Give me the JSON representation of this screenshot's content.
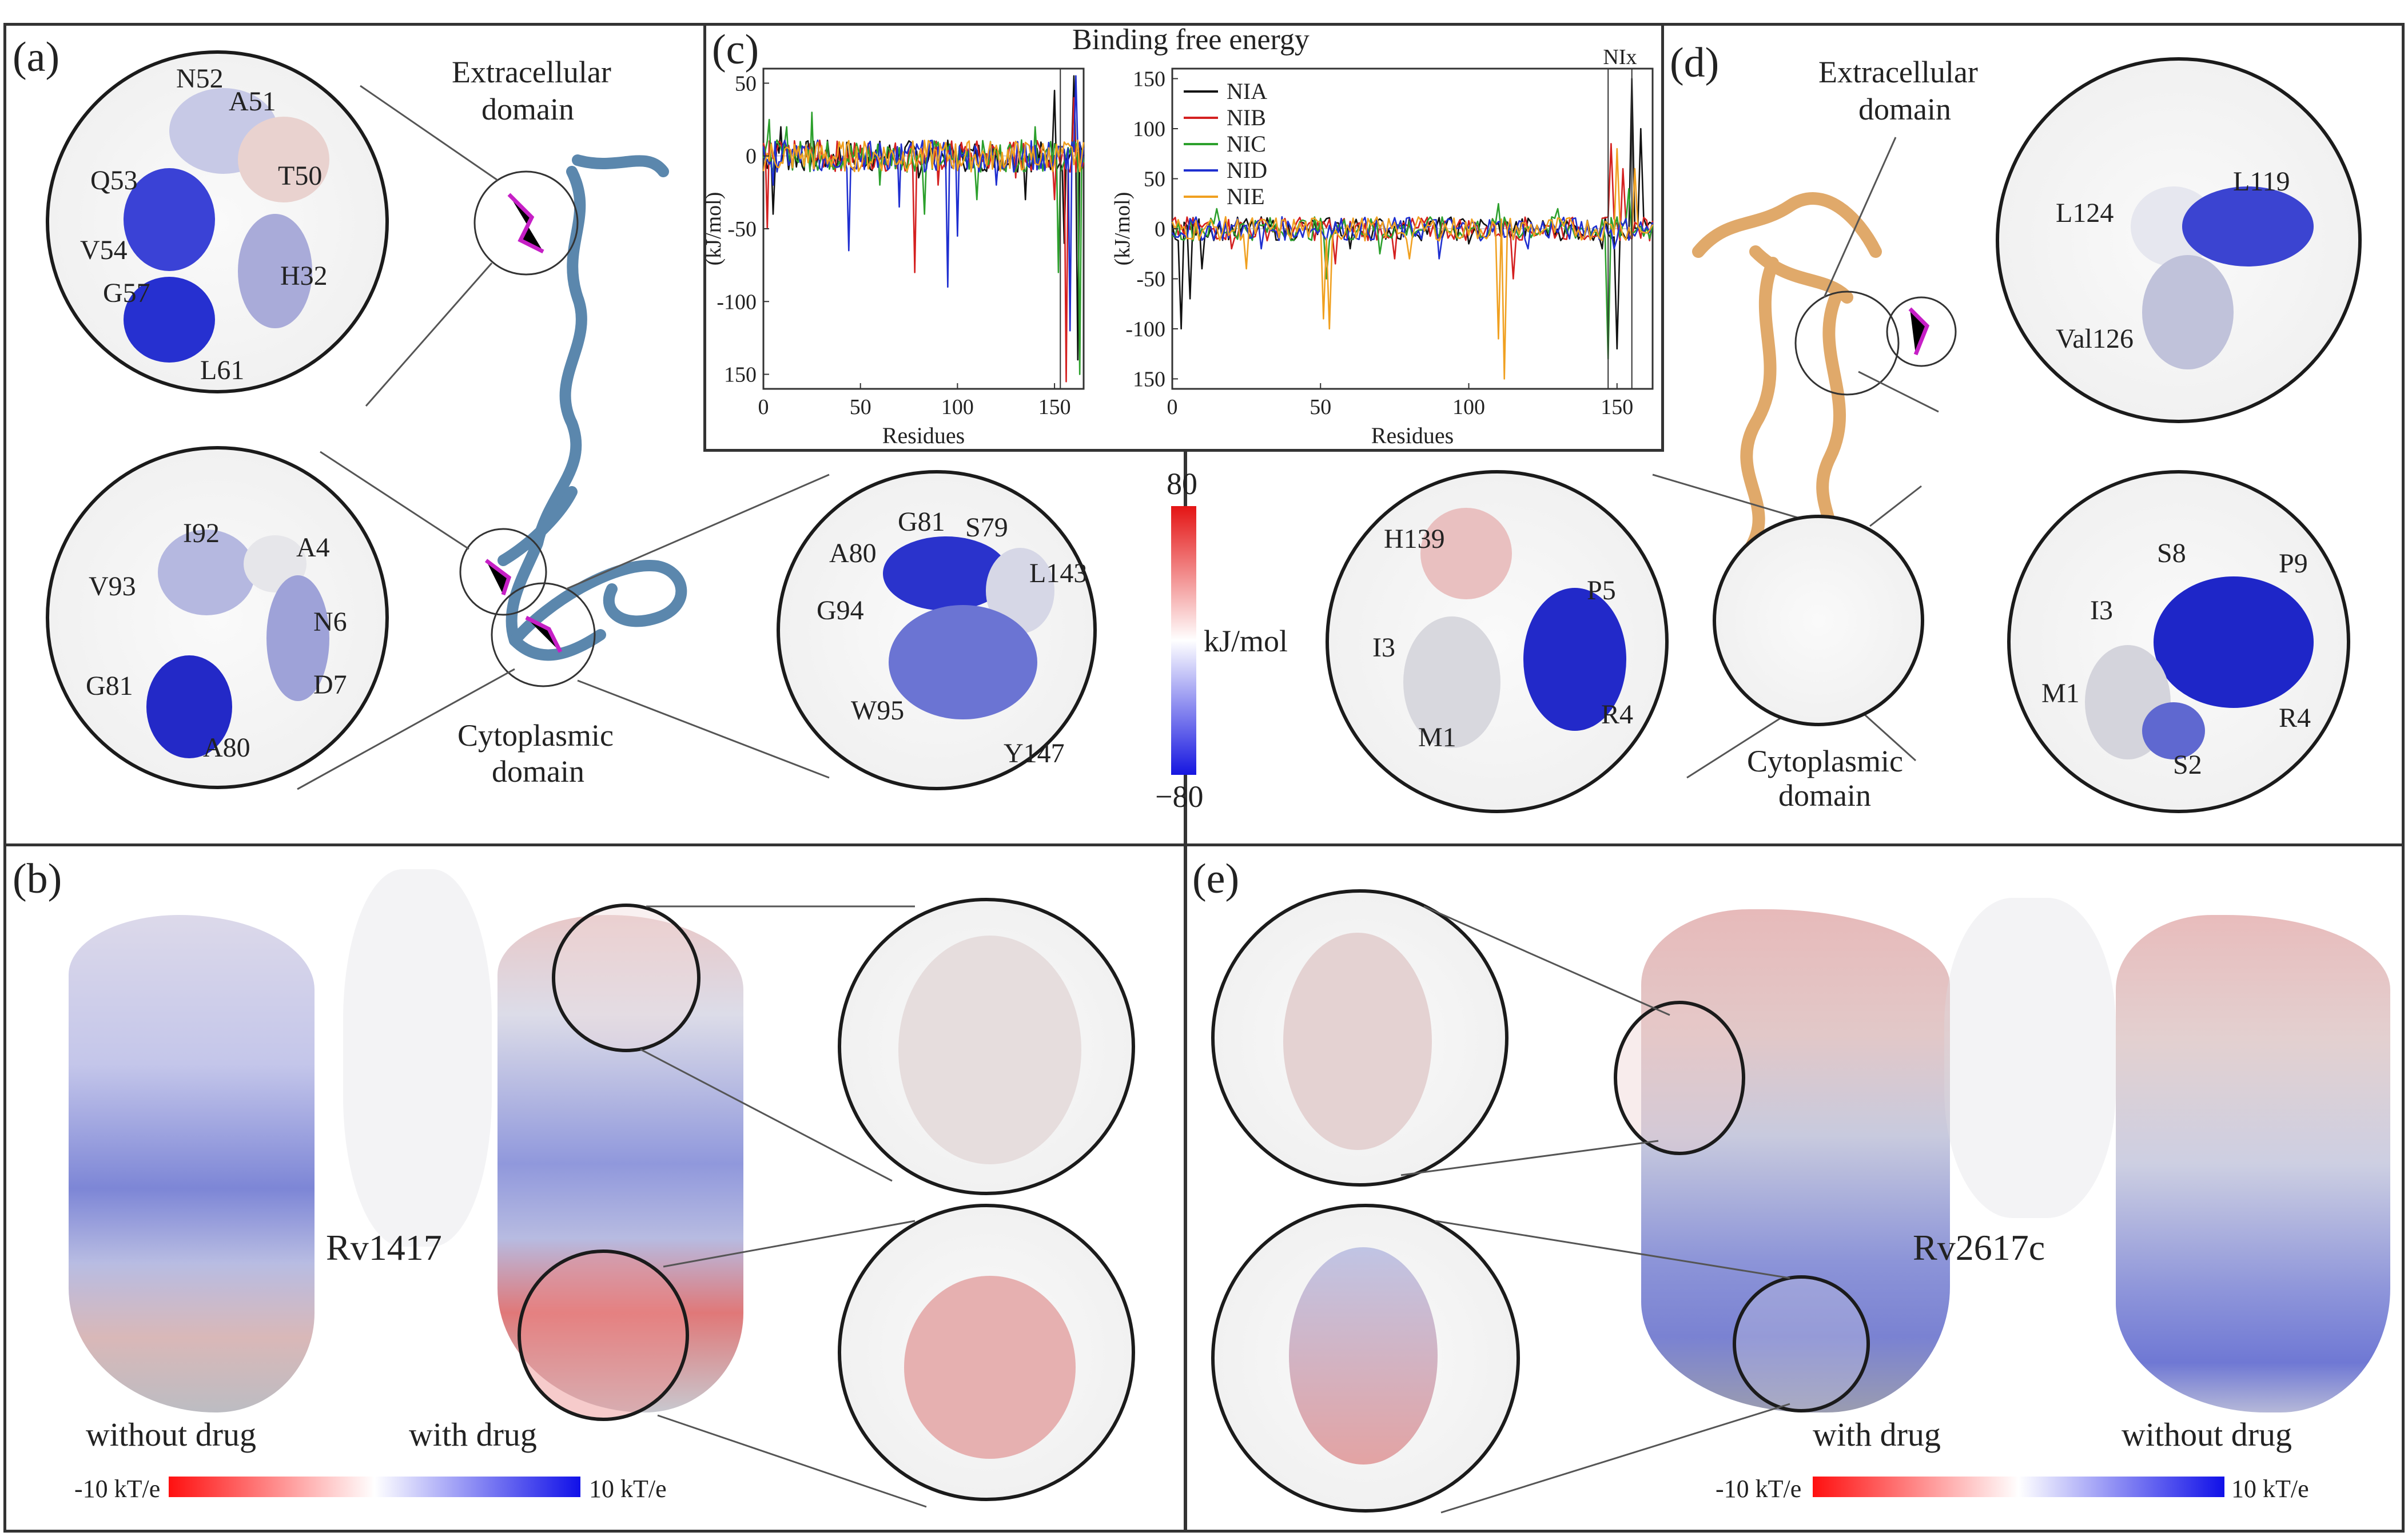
{
  "panel_labels": {
    "a": "(a)",
    "b": "(b)",
    "c": "(c)",
    "d": "(d)",
    "e": "(e)"
  },
  "panel_a": {
    "extracellular": [
      "Extracellular",
      "domain"
    ],
    "cytoplasmic": [
      "Cytoplasmic",
      "domain"
    ],
    "zoom_top_residues": [
      "N52",
      "A51",
      "Q53",
      "T50",
      "V54",
      "H32",
      "G57",
      "L61"
    ],
    "zoom_mid_residues": [
      "I92",
      "A4",
      "V93",
      "N6",
      "G81",
      "D7",
      "A80"
    ],
    "zoom_right_residues": [
      "G81",
      "S79",
      "A80",
      "L143",
      "G94",
      "W95",
      "Y147"
    ]
  },
  "panel_d": {
    "extracellular": [
      "Extracellular",
      "domain"
    ],
    "cytoplasmic": [
      "Cytoplasmic",
      "domain"
    ],
    "zoom_top_residues": [
      "L124",
      "L119",
      "Val126"
    ],
    "zoom_left_residues": [
      "H139",
      "P5",
      "I3",
      "M1",
      "R4"
    ],
    "zoom_right_residues": [
      "S8",
      "P9",
      "I3",
      "M1",
      "R4",
      "S2"
    ]
  },
  "colorbar_center": {
    "max": "80",
    "min": "−80",
    "unit": "kJ/mol",
    "colors": [
      "#e41414",
      "#ffffff",
      "#1616e0"
    ]
  },
  "panel_b": {
    "protein_label": "Rv1417",
    "without": "without drug",
    "with": "with drug",
    "cbar_min": "-10 kT/e",
    "cbar_max": "10 kT/e"
  },
  "panel_e": {
    "protein_label": "Rv2617c",
    "without": "without drug",
    "with": "with drug",
    "cbar_min": "-10 kT/e",
    "cbar_max": "10 kT/e"
  },
  "chart_data": [
    {
      "type": "line",
      "title": "Binding free energy",
      "xlabel": "Residues",
      "ylabel": "(kJ/mol)",
      "xlim": [
        0,
        165
      ],
      "ylim": [
        -160,
        60
      ],
      "xticks": [
        0,
        50,
        100,
        150
      ],
      "yticks": [
        50,
        0,
        -50,
        -100,
        150
      ],
      "series": [
        {
          "color": "#111111",
          "spikes": [
            [
              5,
              -40
            ],
            [
              9,
              20
            ],
            [
              30,
              5
            ],
            [
              80,
              -15
            ],
            [
              120,
              5
            ],
            [
              135,
              -30
            ],
            [
              150,
              45
            ],
            [
              155,
              -60
            ],
            [
              160,
              55
            ],
            [
              162,
              -140
            ]
          ]
        },
        {
          "color": "#d42020",
          "spikes": [
            [
              2,
              -50
            ],
            [
              8,
              10
            ],
            [
              40,
              -10
            ],
            [
              78,
              -80
            ],
            [
              90,
              -20
            ],
            [
              130,
              -15
            ],
            [
              150,
              -30
            ],
            [
              156,
              -155
            ],
            [
              160,
              40
            ]
          ]
        },
        {
          "color": "#2ca02c",
          "spikes": [
            [
              3,
              25
            ],
            [
              12,
              20
            ],
            [
              25,
              30
            ],
            [
              60,
              -20
            ],
            [
              83,
              -40
            ],
            [
              110,
              -30
            ],
            [
              140,
              20
            ],
            [
              152,
              -80
            ],
            [
              163,
              -150
            ]
          ]
        },
        {
          "color": "#1f2fd0",
          "spikes": [
            [
              5,
              -20
            ],
            [
              30,
              -10
            ],
            [
              44,
              -65
            ],
            [
              70,
              -35
            ],
            [
              95,
              -90
            ],
            [
              100,
              -55
            ],
            [
              120,
              -20
            ],
            [
              145,
              -10
            ],
            [
              158,
              -120
            ],
            [
              161,
              55
            ]
          ]
        },
        {
          "color": "#f0a020",
          "spikes": [
            [
              10,
              -5
            ],
            [
              50,
              -8
            ],
            [
              100,
              -10
            ],
            [
              140,
              -5
            ]
          ]
        }
      ]
    },
    {
      "type": "line",
      "xlabel": "Residues",
      "ylabel": "(kJ/mol)",
      "xlim": [
        0,
        162
      ],
      "ylim": [
        -160,
        160
      ],
      "xticks": [
        0,
        50,
        100,
        150
      ],
      "yticks": [
        150,
        100,
        50,
        0,
        -50,
        -100,
        150
      ],
      "top_annotation": "NIx",
      "legend": [
        "NIA",
        "NIB",
        "NIC",
        "NID",
        "NIE"
      ],
      "legend_position": "top-right",
      "series": [
        {
          "name": "NIA",
          "color": "#111111",
          "spikes": [
            [
              3,
              -100
            ],
            [
              6,
              -70
            ],
            [
              10,
              -40
            ],
            [
              60,
              -20
            ],
            [
              100,
              -15
            ],
            [
              145,
              -20
            ],
            [
              150,
              -120
            ],
            [
              155,
              150
            ],
            [
              158,
              100
            ]
          ]
        },
        {
          "name": "NIB",
          "color": "#d42020",
          "spikes": [
            [
              20,
              -20
            ],
            [
              55,
              -35
            ],
            [
              75,
              -30
            ],
            [
              115,
              -50
            ],
            [
              148,
              85
            ],
            [
              152,
              60
            ]
          ]
        },
        {
          "name": "NIC",
          "color": "#2ca02c",
          "spikes": [
            [
              15,
              20
            ],
            [
              52,
              -50
            ],
            [
              70,
              -25
            ],
            [
              110,
              25
            ],
            [
              130,
              20
            ],
            [
              147,
              -130
            ],
            [
              154,
              40
            ]
          ]
        },
        {
          "name": "NID",
          "color": "#1f2fd0",
          "spikes": [
            [
              30,
              -20
            ],
            [
              90,
              -30
            ],
            [
              120,
              -20
            ],
            [
              149,
              -20
            ]
          ]
        },
        {
          "name": "NIE",
          "color": "#f0a020",
          "spikes": [
            [
              25,
              -40
            ],
            [
              51,
              -90
            ],
            [
              53,
              -100
            ],
            [
              80,
              -30
            ],
            [
              110,
              -110
            ],
            [
              112,
              -150
            ],
            [
              150,
              80
            ],
            [
              156,
              60
            ]
          ]
        }
      ]
    }
  ]
}
